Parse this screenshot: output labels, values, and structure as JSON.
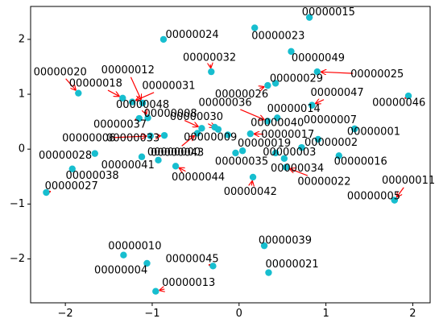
{
  "chart_data": {
    "type": "scatter",
    "xlim": [
      -2.4,
      2.2
    ],
    "ylim": [
      -2.8,
      2.6
    ],
    "x_ticks": [
      -2,
      -1,
      0,
      1,
      2
    ],
    "y_ticks": [
      -2,
      -1,
      0,
      1,
      2
    ],
    "x_tick_labels": [
      "−2",
      "−1",
      "0",
      "1",
      "2"
    ],
    "y_tick_labels": [
      "−2",
      "−1",
      "0",
      "1",
      "2"
    ],
    "grid": false,
    "colors": {
      "point": "#17becf",
      "arrow": "#ff0000",
      "axis": "#000000",
      "background": "#ffffff"
    },
    "points": [
      {
        "label": "00000000",
        "x": -0.48,
        "y": 0.29,
        "lx": -0.75,
        "ly": -0.06
      },
      {
        "label": "00000001",
        "x": 1.33,
        "y": 0.37,
        "lx": 1.55,
        "ly": 0.31
      },
      {
        "label": "00000002",
        "x": 0.91,
        "y": 0.18,
        "lx": 1.06,
        "ly": 0.11
      },
      {
        "label": "00000003",
        "x": 0.72,
        "y": 0.03,
        "lx": 0.58,
        "ly": -0.06
      },
      {
        "label": "00000004",
        "x": -1.06,
        "y": -2.08,
        "lx": -1.36,
        "ly": -2.21
      },
      {
        "label": "00000005",
        "x": 1.79,
        "y": -0.93,
        "lx": 1.55,
        "ly": -0.86
      },
      {
        "label": "00000006",
        "x": -1.02,
        "y": 0.24,
        "lx": -1.73,
        "ly": 0.19
      },
      {
        "label": "00000007",
        "x": 1.33,
        "y": 0.37,
        "lx": 1.05,
        "ly": 0.52
      },
      {
        "label": "00000008",
        "x": -0.43,
        "y": 0.38,
        "lx": -0.79,
        "ly": 0.64
      },
      {
        "label": "00000009",
        "x": -0.28,
        "y": 0.4,
        "lx": -0.33,
        "ly": 0.21
      },
      {
        "label": "00000010",
        "x": -1.33,
        "y": -1.93,
        "lx": -1.2,
        "ly": -1.77
      },
      {
        "label": "00000011",
        "x": 1.79,
        "y": -0.93,
        "lx": 1.95,
        "ly": -0.58
      },
      {
        "label": "00000012",
        "x": -1.11,
        "y": 0.84,
        "lx": -1.28,
        "ly": 1.43
      },
      {
        "label": "00000013",
        "x": -0.96,
        "y": -2.59,
        "lx": -0.58,
        "ly": -2.44
      },
      {
        "label": "00000014",
        "x": 0.84,
        "y": 0.8,
        "lx": 0.63,
        "ly": 0.73
      },
      {
        "label": "00000015",
        "x": 0.81,
        "y": 2.4,
        "lx": 1.03,
        "ly": 2.49
      },
      {
        "label": "00000016",
        "x": 1.15,
        "y": -0.12,
        "lx": 1.4,
        "ly": -0.23
      },
      {
        "label": "00000017",
        "x": 0.13,
        "y": 0.28,
        "lx": 0.56,
        "ly": 0.26
      },
      {
        "label": "00000019",
        "x": 0.04,
        "y": -0.03,
        "lx": 0.29,
        "ly": 0.1
      },
      {
        "label": "00000018",
        "x": -1.34,
        "y": 0.93,
        "lx": -1.65,
        "ly": 1.19
      },
      {
        "label": "00000020",
        "x": -1.85,
        "y": 1.02,
        "lx": -2.06,
        "ly": 1.4
      },
      {
        "label": "00000021",
        "x": 0.34,
        "y": -2.25,
        "lx": 0.61,
        "ly": -2.1
      },
      {
        "label": "00000022",
        "x": 0.54,
        "y": -0.33,
        "lx": 0.98,
        "ly": -0.6
      },
      {
        "label": "00000023",
        "x": 0.18,
        "y": 2.21,
        "lx": 0.45,
        "ly": 2.06
      },
      {
        "label": "00000024",
        "x": -0.87,
        "y": 2.0,
        "lx": -0.54,
        "ly": 2.08
      },
      {
        "label": "00000025",
        "x": 0.9,
        "y": 1.41,
        "lx": 1.59,
        "ly": 1.36
      },
      {
        "label": "00000026",
        "x": 0.33,
        "y": 1.16,
        "lx": 0.03,
        "ly": 0.99
      },
      {
        "label": "00000027",
        "x": -2.22,
        "y": -0.79,
        "lx": -1.93,
        "ly": -0.68
      },
      {
        "label": "00000028",
        "x": -1.66,
        "y": -0.08,
        "lx": -2.0,
        "ly": -0.12
      },
      {
        "label": "00000029",
        "x": 0.42,
        "y": 1.2,
        "lx": 0.66,
        "ly": 1.28
      },
      {
        "label": "00000030",
        "x": -0.24,
        "y": 0.36,
        "lx": -0.49,
        "ly": 0.58
      },
      {
        "label": "00000031",
        "x": -1.23,
        "y": 0.86,
        "lx": -0.81,
        "ly": 1.15
      },
      {
        "label": "00000032",
        "x": -0.32,
        "y": 1.41,
        "lx": -0.34,
        "ly": 1.66
      },
      {
        "label": "00000033",
        "x": -0.86,
        "y": 0.25,
        "lx": -1.22,
        "ly": 0.19
      },
      {
        "label": "00000034",
        "x": 0.52,
        "y": -0.17,
        "lx": 0.67,
        "ly": -0.36
      },
      {
        "label": "00000035",
        "x": -0.04,
        "y": -0.07,
        "lx": 0.03,
        "ly": -0.23
      },
      {
        "label": "00000036",
        "x": 0.33,
        "y": 0.51,
        "lx": -0.16,
        "ly": 0.84
      },
      {
        "label": "00000037",
        "x": -1.15,
        "y": 0.56,
        "lx": -1.37,
        "ly": 0.44
      },
      {
        "label": "00000038",
        "x": -1.92,
        "y": -0.36,
        "lx": -1.69,
        "ly": -0.49
      },
      {
        "label": "00000039",
        "x": 0.29,
        "y": -1.76,
        "lx": 0.53,
        "ly": -1.67
      },
      {
        "label": "00000040",
        "x": 0.44,
        "y": 0.57,
        "lx": 0.44,
        "ly": 0.47
      },
      {
        "label": "00000041",
        "x": -1.12,
        "y": -0.14,
        "lx": -1.28,
        "ly": -0.3
      },
      {
        "label": "00000042",
        "x": 0.16,
        "y": -0.51,
        "lx": 0.13,
        "ly": -0.78
      },
      {
        "label": "00000043",
        "x": -0.93,
        "y": -0.2,
        "lx": -0.71,
        "ly": -0.07
      },
      {
        "label": "00000044",
        "x": -0.73,
        "y": -0.31,
        "lx": -0.47,
        "ly": -0.52
      },
      {
        "label": "00000045",
        "x": -0.3,
        "y": -2.13,
        "lx": -0.54,
        "ly": -2.01
      },
      {
        "label": "00000046",
        "x": 1.95,
        "y": 0.97,
        "lx": 1.84,
        "ly": 0.84
      },
      {
        "label": "00000047",
        "x": 0.84,
        "y": 0.8,
        "lx": 1.13,
        "ly": 1.02
      },
      {
        "label": "00000048",
        "x": -1.05,
        "y": 0.57,
        "lx": -1.11,
        "ly": 0.8
      },
      {
        "label": "00000049",
        "x": 0.6,
        "y": 1.78,
        "lx": 0.91,
        "ly": 1.65
      }
    ],
    "extra_points": [
      {
        "x": -0.13,
        "y": 0.26
      },
      {
        "x": 0.42,
        "y": -0.07
      }
    ]
  }
}
